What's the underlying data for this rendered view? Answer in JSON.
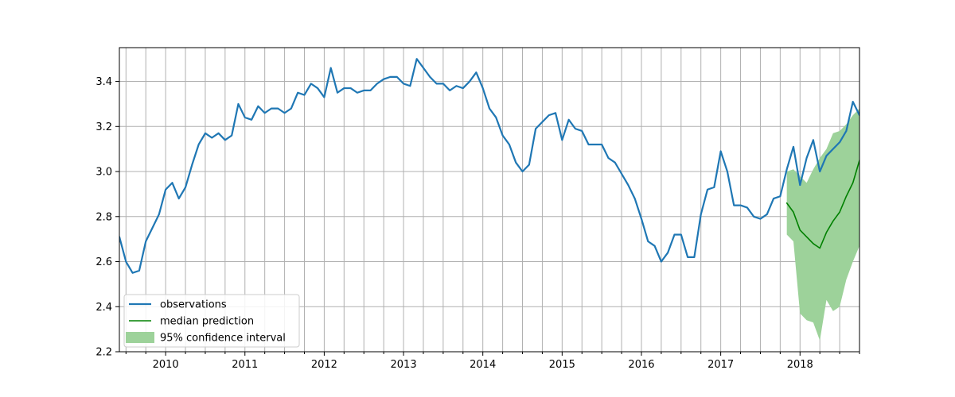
{
  "chart_data": {
    "type": "line",
    "title": "",
    "xlabel": "",
    "ylabel": "",
    "xlim": [
      "2009-06",
      "2018-10"
    ],
    "ylim": [
      2.2,
      3.55
    ],
    "x_ticks": [
      "2010",
      "2011",
      "2012",
      "2013",
      "2014",
      "2015",
      "2016",
      "2017",
      "2018"
    ],
    "y_ticks": [
      "2.2",
      "2.4",
      "2.6",
      "2.8",
      "3.0",
      "3.2",
      "3.4"
    ],
    "grid": "monthly-minor vertical, major horizontal",
    "legend_position": "lower-left",
    "series": [
      {
        "name": "observations",
        "color": "#1f77b4",
        "x": [
          "2009-06",
          "2009-07",
          "2009-08",
          "2009-09",
          "2009-10",
          "2009-11",
          "2009-12",
          "2010-01",
          "2010-02",
          "2010-03",
          "2010-04",
          "2010-05",
          "2010-06",
          "2010-07",
          "2010-08",
          "2010-09",
          "2010-10",
          "2010-11",
          "2010-12",
          "2011-01",
          "2011-02",
          "2011-03",
          "2011-04",
          "2011-05",
          "2011-06",
          "2011-07",
          "2011-08",
          "2011-09",
          "2011-10",
          "2011-11",
          "2011-12",
          "2012-01",
          "2012-02",
          "2012-03",
          "2012-04",
          "2012-05",
          "2012-06",
          "2012-07",
          "2012-08",
          "2012-09",
          "2012-10",
          "2012-11",
          "2012-12",
          "2013-01",
          "2013-02",
          "2013-03",
          "2013-04",
          "2013-05",
          "2013-06",
          "2013-07",
          "2013-08",
          "2013-09",
          "2013-10",
          "2013-11",
          "2013-12",
          "2014-01",
          "2014-02",
          "2014-03",
          "2014-04",
          "2014-05",
          "2014-06",
          "2014-07",
          "2014-08",
          "2014-09",
          "2014-10",
          "2014-11",
          "2014-12",
          "2015-01",
          "2015-02",
          "2015-03",
          "2015-04",
          "2015-05",
          "2015-06",
          "2015-07",
          "2015-08",
          "2015-09",
          "2015-10",
          "2015-11",
          "2015-12",
          "2016-01",
          "2016-02",
          "2016-03",
          "2016-04",
          "2016-05",
          "2016-06",
          "2016-07",
          "2016-08",
          "2016-09",
          "2016-10",
          "2016-11",
          "2016-12",
          "2017-01",
          "2017-02",
          "2017-03",
          "2017-04",
          "2017-05",
          "2017-06",
          "2017-07",
          "2017-08",
          "2017-09",
          "2017-10",
          "2017-11",
          "2017-12",
          "2018-01",
          "2018-02",
          "2018-03",
          "2018-04",
          "2018-05",
          "2018-06",
          "2018-07",
          "2018-08",
          "2018-09",
          "2018-10"
        ],
        "values": [
          2.71,
          2.6,
          2.55,
          2.56,
          2.69,
          2.75,
          2.81,
          2.92,
          2.95,
          2.88,
          2.93,
          3.03,
          3.12,
          3.17,
          3.15,
          3.17,
          3.14,
          3.16,
          3.3,
          3.24,
          3.23,
          3.29,
          3.26,
          3.28,
          3.28,
          3.26,
          3.28,
          3.35,
          3.34,
          3.39,
          3.37,
          3.33,
          3.46,
          3.35,
          3.37,
          3.37,
          3.35,
          3.36,
          3.36,
          3.39,
          3.41,
          3.42,
          3.42,
          3.39,
          3.38,
          3.5,
          3.46,
          3.42,
          3.39,
          3.39,
          3.36,
          3.38,
          3.37,
          3.4,
          3.44,
          3.37,
          3.28,
          3.24,
          3.16,
          3.12,
          3.04,
          3.0,
          3.03,
          3.19,
          3.22,
          3.25,
          3.26,
          3.14,
          3.23,
          3.19,
          3.18,
          3.12,
          3.12,
          3.12,
          3.06,
          3.04,
          2.99,
          2.94,
          2.88,
          2.79,
          2.69,
          2.67,
          2.6,
          2.64,
          2.72,
          2.72,
          2.62,
          2.62,
          2.81,
          2.92,
          2.93,
          3.09,
          3.0,
          2.85,
          2.85,
          2.84,
          2.8,
          2.79,
          2.81,
          2.88,
          2.89,
          3.01,
          3.11,
          2.94,
          3.06,
          3.14,
          3.0,
          3.07,
          3.1,
          3.13,
          3.18,
          3.31,
          3.25
        ]
      },
      {
        "name": "median prediction",
        "color": "#008000",
        "x": [
          "2017-11",
          "2017-12",
          "2018-01",
          "2018-02",
          "2018-03",
          "2018-04",
          "2018-05",
          "2018-06",
          "2018-07",
          "2018-08",
          "2018-09",
          "2018-10"
        ],
        "values": [
          2.86,
          2.82,
          2.74,
          2.71,
          2.68,
          2.66,
          2.73,
          2.78,
          2.82,
          2.89,
          2.95,
          3.05
        ]
      }
    ],
    "band": {
      "name": "95% confidence interval",
      "color": "#9dd29a",
      "x": [
        "2017-11",
        "2017-12",
        "2018-01",
        "2018-02",
        "2018-03",
        "2018-04",
        "2018-05",
        "2018-06",
        "2018-07",
        "2018-08",
        "2018-09",
        "2018-10"
      ],
      "lower": [
        2.72,
        2.69,
        2.37,
        2.34,
        2.33,
        2.25,
        2.43,
        2.38,
        2.4,
        2.52,
        2.6,
        2.67
      ],
      "upper": [
        3.0,
        3.01,
        2.98,
        2.95,
        3.01,
        3.06,
        3.1,
        3.17,
        3.18,
        3.21,
        3.25,
        3.28
      ]
    }
  }
}
